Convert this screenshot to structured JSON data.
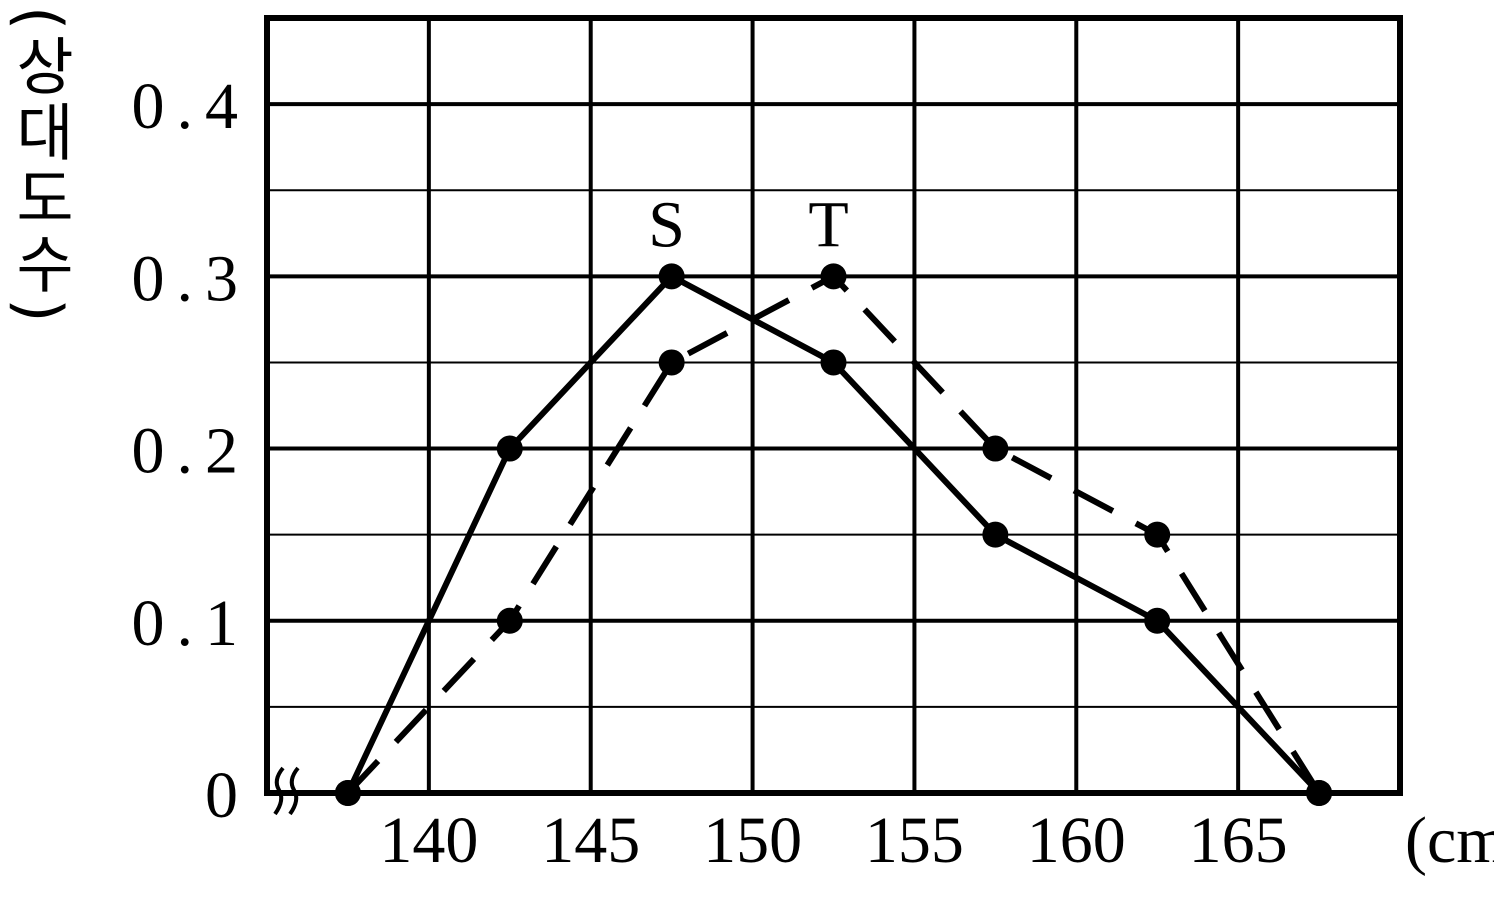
{
  "chart_data": {
    "type": "line",
    "y_label": "(상대도수)",
    "x_label": "(cm)",
    "x": [
      137.5,
      142.5,
      147.5,
      152.5,
      157.5,
      162.5,
      167.5
    ],
    "series": [
      {
        "name": "S",
        "color": "#000000",
        "dash": false,
        "values": [
          0,
          0.2,
          0.3,
          0.25,
          0.15,
          0.1,
          0
        ]
      },
      {
        "name": "T",
        "color": "#000000",
        "dash": true,
        "values": [
          0,
          0.1,
          0.25,
          0.3,
          0.2,
          0.15,
          0
        ]
      }
    ],
    "xlim": [
      135,
      170
    ],
    "xticks": [
      140,
      145,
      150,
      155,
      160,
      165
    ],
    "ylim": [
      0,
      0.45
    ],
    "yticks": [
      0,
      0.1,
      0.2,
      0.3,
      0.4
    ],
    "minor_yticks": [
      0.05,
      0.15,
      0.25,
      0.35
    ],
    "grid": true
  }
}
